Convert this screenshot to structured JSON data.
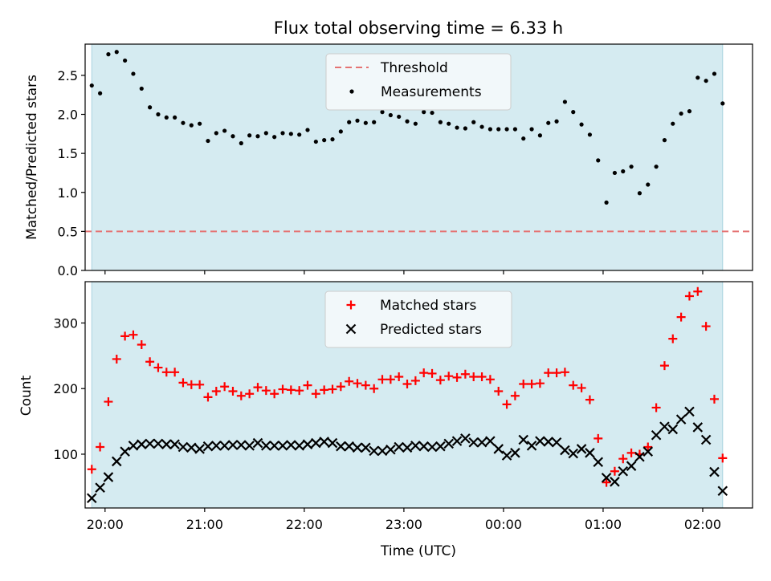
{
  "chart_data": [
    {
      "type": "scatter",
      "title": "Flux total observing time = 6.33 h",
      "xlabel": "",
      "ylabel": "Matched/Predicted stars",
      "ylim": [
        0,
        2.9
      ],
      "yticks": [
        "0.0",
        "0.5",
        "1.0",
        "1.5",
        "2.0",
        "2.5"
      ],
      "ytick_values": [
        0,
        0.5,
        1.0,
        1.5,
        2.0,
        2.5
      ],
      "xlim": [
        "19:48",
        "02:30"
      ],
      "observing_window": [
        "19:52",
        "02:12"
      ],
      "shade_color": "#d5ebf1",
      "legend_position": "upper center",
      "threshold": {
        "name": "Threshold",
        "value": 0.5,
        "color": "#e57373",
        "style": "dashed"
      },
      "series": [
        {
          "name": "Measurements",
          "color": "#000000",
          "marker": "dot",
          "x": [
            "19:52",
            "19:57",
            "20:02",
            "20:07",
            "20:12",
            "20:17",
            "20:22",
            "20:27",
            "20:32",
            "20:37",
            "20:42",
            "20:47",
            "20:52",
            "20:57",
            "21:02",
            "21:07",
            "21:12",
            "21:17",
            "21:22",
            "21:27",
            "21:32",
            "21:37",
            "21:42",
            "21:47",
            "21:52",
            "21:57",
            "22:02",
            "22:07",
            "22:12",
            "22:17",
            "22:22",
            "22:27",
            "22:32",
            "22:37",
            "22:42",
            "22:47",
            "22:52",
            "22:57",
            "23:02",
            "23:07",
            "23:12",
            "23:17",
            "23:22",
            "23:27",
            "23:32",
            "23:37",
            "23:42",
            "23:47",
            "23:52",
            "23:57",
            "00:02",
            "00:07",
            "00:12",
            "00:17",
            "00:22",
            "00:27",
            "00:32",
            "00:37",
            "00:42",
            "00:47",
            "00:52",
            "00:57",
            "01:02",
            "01:07",
            "01:12",
            "01:17",
            "01:22",
            "01:27",
            "01:32",
            "01:37",
            "01:42",
            "01:47",
            "01:52",
            "01:57",
            "02:02",
            "02:07",
            "02:12"
          ],
          "y": [
            2.37,
            2.27,
            2.77,
            2.8,
            2.69,
            2.52,
            2.33,
            2.09,
            2.0,
            1.96,
            1.96,
            1.89,
            1.86,
            1.88,
            1.66,
            1.76,
            1.79,
            1.72,
            1.63,
            1.73,
            1.72,
            1.76,
            1.71,
            1.76,
            1.75,
            1.74,
            1.8,
            1.65,
            1.67,
            1.68,
            1.78,
            1.9,
            1.92,
            1.89,
            1.9,
            2.03,
            1.99,
            1.97,
            1.91,
            1.88,
            2.03,
            2.02,
            1.9,
            1.88,
            1.83,
            1.82,
            1.9,
            1.84,
            1.81,
            1.81,
            1.81,
            1.81,
            1.69,
            1.81,
            1.73,
            1.89,
            1.91,
            2.16,
            2.03,
            1.87,
            1.74,
            1.41,
            0.87,
            1.25,
            1.27,
            1.33,
            0.99,
            1.1,
            1.33,
            1.67,
            1.88,
            2.01,
            2.04,
            2.47,
            2.43,
            2.52,
            2.14
          ]
        }
      ]
    },
    {
      "type": "scatter",
      "title": "",
      "xlabel": "Time (UTC)",
      "ylabel": "Count",
      "ylim": [
        18,
        363
      ],
      "yticks": [
        "100",
        "200",
        "300"
      ],
      "ytick_values": [
        100,
        200,
        300
      ],
      "xlim": [
        "19:48",
        "02:30"
      ],
      "xticks": [
        "20:00",
        "21:00",
        "22:00",
        "23:00",
        "00:00",
        "01:00",
        "02:00"
      ],
      "observing_window": [
        "19:52",
        "02:12"
      ],
      "shade_color": "#d5ebf1",
      "legend_position": "upper center",
      "series": [
        {
          "name": "Matched stars",
          "color": "#ff0000",
          "marker": "plus",
          "x": [
            "19:52",
            "19:57",
            "20:02",
            "20:07",
            "20:12",
            "20:17",
            "20:22",
            "20:27",
            "20:32",
            "20:37",
            "20:42",
            "20:47",
            "20:52",
            "20:57",
            "21:02",
            "21:07",
            "21:12",
            "21:17",
            "21:22",
            "21:27",
            "21:32",
            "21:37",
            "21:42",
            "21:47",
            "21:52",
            "21:57",
            "22:02",
            "22:07",
            "22:12",
            "22:17",
            "22:22",
            "22:27",
            "22:32",
            "22:37",
            "22:42",
            "22:47",
            "22:52",
            "22:57",
            "23:02",
            "23:07",
            "23:12",
            "23:17",
            "23:22",
            "23:27",
            "23:32",
            "23:37",
            "23:42",
            "23:47",
            "23:52",
            "23:57",
            "00:02",
            "00:07",
            "00:12",
            "00:17",
            "00:22",
            "00:27",
            "00:32",
            "00:37",
            "00:42",
            "00:47",
            "00:52",
            "00:57",
            "01:02",
            "01:07",
            "01:12",
            "01:17",
            "01:22",
            "01:27",
            "01:32",
            "01:37",
            "01:42",
            "01:47",
            "01:52",
            "01:57",
            "02:02",
            "02:07",
            "02:12"
          ],
          "y": [
            77,
            111,
            180,
            245,
            280,
            282,
            267,
            241,
            232,
            225,
            225,
            209,
            206,
            206,
            187,
            196,
            203,
            196,
            189,
            192,
            202,
            197,
            192,
            199,
            198,
            197,
            205,
            192,
            198,
            199,
            203,
            211,
            208,
            205,
            200,
            214,
            214,
            218,
            207,
            212,
            224,
            223,
            213,
            219,
            217,
            222,
            218,
            218,
            214,
            196,
            176,
            189,
            207,
            207,
            208,
            224,
            224,
            225,
            205,
            201,
            183,
            124,
            57,
            74,
            93,
            102,
            100,
            111,
            171,
            235,
            276,
            309,
            341,
            348,
            295,
            184,
            94
          ]
        },
        {
          "name": "Predicted stars",
          "color": "#000000",
          "marker": "x",
          "x": [
            "19:52",
            "19:57",
            "20:02",
            "20:07",
            "20:12",
            "20:17",
            "20:22",
            "20:27",
            "20:32",
            "20:37",
            "20:42",
            "20:47",
            "20:52",
            "20:57",
            "21:02",
            "21:07",
            "21:12",
            "21:17",
            "21:22",
            "21:27",
            "21:32",
            "21:37",
            "21:42",
            "21:47",
            "21:52",
            "21:57",
            "22:02",
            "22:07",
            "22:12",
            "22:17",
            "22:22",
            "22:27",
            "22:32",
            "22:37",
            "22:42",
            "22:47",
            "22:52",
            "22:57",
            "23:02",
            "23:07",
            "23:12",
            "23:17",
            "23:22",
            "23:27",
            "23:32",
            "23:37",
            "23:42",
            "23:47",
            "23:52",
            "23:57",
            "00:02",
            "00:07",
            "00:12",
            "00:17",
            "00:22",
            "00:27",
            "00:32",
            "00:37",
            "00:42",
            "00:47",
            "00:52",
            "00:57",
            "01:02",
            "01:07",
            "01:12",
            "01:17",
            "01:22",
            "01:27",
            "01:32",
            "01:37",
            "01:42",
            "01:47",
            "01:52",
            "01:57",
            "02:02",
            "02:07",
            "02:12"
          ],
          "y": [
            33,
            49,
            65,
            89,
            104,
            113,
            115,
            116,
            116,
            115,
            115,
            111,
            110,
            108,
            112,
            113,
            113,
            114,
            114,
            113,
            117,
            113,
            113,
            113,
            114,
            113,
            115,
            117,
            119,
            117,
            112,
            112,
            110,
            110,
            105,
            105,
            107,
            111,
            110,
            113,
            112,
            111,
            112,
            116,
            120,
            124,
            118,
            118,
            120,
            108,
            98,
            102,
            122,
            113,
            120,
            119,
            118,
            106,
            101,
            108,
            102,
            88,
            64,
            58,
            74,
            82,
            96,
            104,
            129,
            142,
            138,
            153,
            165,
            141,
            122,
            73,
            44
          ]
        }
      ]
    }
  ]
}
